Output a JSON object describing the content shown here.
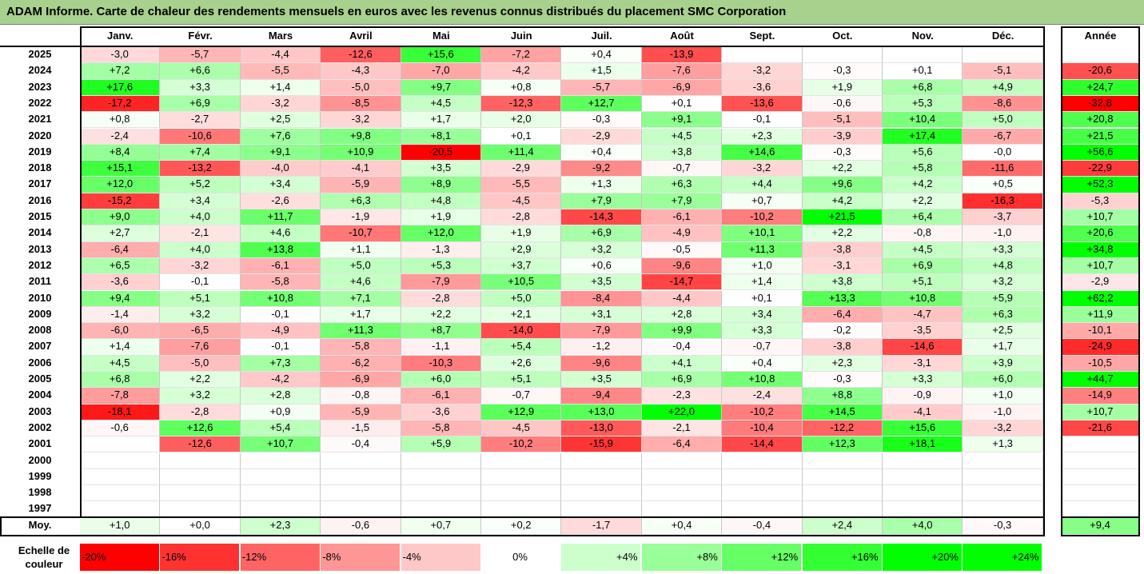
{
  "title": "ADAM Informe. Carte de chaleur des rendements mensuels en euros avec les revenus connus distribués du placement SMC Corporation",
  "chart_data": {
    "type": "heatmap",
    "title": "ADAM Informe. Carte de chaleur des rendements mensuels en euros avec les revenus connus distribués du placement SMC Corporation",
    "columns": [
      "Janv.",
      "Févr.",
      "Mars",
      "Avril",
      "Mai",
      "Juin",
      "Juil.",
      "Août",
      "Sept.",
      "Oct.",
      "Nov.",
      "Déc."
    ],
    "annual_header": "Année",
    "rows": [
      {
        "year": "2025",
        "months": [
          "-3,0",
          "-5,7",
          "-4,4",
          "-12,6",
          "+15,6",
          "-7,2",
          "+0,4",
          "-13,9",
          "",
          "",
          "",
          ""
        ],
        "annual": ""
      },
      {
        "year": "2024",
        "months": [
          "+7,2",
          "+6,6",
          "-5,5",
          "-4,3",
          "-7,0",
          "-4,2",
          "+1,5",
          "-7,6",
          "-3,2",
          "-0,3",
          "+0,1",
          "-5,1"
        ],
        "annual": "-20,6"
      },
      {
        "year": "2023",
        "months": [
          "+17,6",
          "+3,3",
          "+1,4",
          "-5,0",
          "+9,7",
          "+0,8",
          "-5,7",
          "-6,9",
          "-3,6",
          "+1,9",
          "+6,8",
          "+4,9"
        ],
        "annual": "+24,7"
      },
      {
        "year": "2022",
        "months": [
          "-17,2",
          "+6,9",
          "-3,2",
          "-8,5",
          "+4,5",
          "-12,3",
          "+12,7",
          "+0,1",
          "-13,6",
          "-0,6",
          "+5,3",
          "-8,6"
        ],
        "annual": "-32,8"
      },
      {
        "year": "2021",
        "months": [
          "+0,8",
          "-2,7",
          "+2,5",
          "-3,2",
          "+1,7",
          "+2,0",
          "-0,3",
          "+9,1",
          "-0,1",
          "-5,1",
          "+10,4",
          "+5,0"
        ],
        "annual": "+20,8"
      },
      {
        "year": "2020",
        "months": [
          "-2,4",
          "-10,6",
          "+7,6",
          "+9,8",
          "+8,1",
          "+0,1",
          "-2,9",
          "+4,5",
          "+2,3",
          "-3,9",
          "+17,4",
          "-6,7"
        ],
        "annual": "+21,5"
      },
      {
        "year": "2019",
        "months": [
          "+8,4",
          "+7,4",
          "+9,1",
          "+10,9",
          "-20,5",
          "+11,4",
          "+0,4",
          "+3,8",
          "+14,6",
          "-0,3",
          "+5,6",
          "-0,0"
        ],
        "annual": "+56,6"
      },
      {
        "year": "2018",
        "months": [
          "+15,1",
          "-13,2",
          "-4,0",
          "-4,1",
          "+3,5",
          "-2,9",
          "-9,2",
          "-0,7",
          "-3,2",
          "+2,2",
          "+5,8",
          "-11,6"
        ],
        "annual": "-22,9"
      },
      {
        "year": "2017",
        "months": [
          "+12,0",
          "+5,2",
          "+3,4",
          "-5,9",
          "+8,9",
          "-5,5",
          "+1,3",
          "+6,3",
          "+4,4",
          "+9,6",
          "+4,2",
          "+0,5"
        ],
        "annual": "+52,3"
      },
      {
        "year": "2016",
        "months": [
          "-15,2",
          "+3,4",
          "-2,6",
          "+6,3",
          "+4,8",
          "-4,5",
          "+7,9",
          "+7,9",
          "+0,7",
          "+4,2",
          "+2,2",
          "-16,3"
        ],
        "annual": "-5,3"
      },
      {
        "year": "2015",
        "months": [
          "+9,0",
          "+4,0",
          "+11,7",
          "-1,9",
          "+1,9",
          "-2,8",
          "-14,3",
          "-6,1",
          "-10,2",
          "+21,5",
          "+6,4",
          "-3,7"
        ],
        "annual": "+10,7"
      },
      {
        "year": "2014",
        "months": [
          "+2,7",
          "-2,1",
          "+4,6",
          "-10,7",
          "+12,0",
          "+1,9",
          "+6,9",
          "-4,9",
          "+10,1",
          "+2,2",
          "-0,8",
          "-1,0"
        ],
        "annual": "+20,6"
      },
      {
        "year": "2013",
        "months": [
          "-6,4",
          "+4,0",
          "+13,8",
          "+1,1",
          "-1,3",
          "+2,9",
          "+3,2",
          "-0,5",
          "+11,3",
          "-3,8",
          "+4,5",
          "+3,3"
        ],
        "annual": "+34,8"
      },
      {
        "year": "2012",
        "months": [
          "+6,5",
          "-3,2",
          "-6,1",
          "+5,0",
          "+5,3",
          "+3,7",
          "+0,6",
          "-9,6",
          "+1,0",
          "-3,1",
          "+6,9",
          "+4,8"
        ],
        "annual": "+10,7"
      },
      {
        "year": "2011",
        "months": [
          "-3,6",
          "-0,1",
          "-5,8",
          "+4,6",
          "-7,9",
          "+10,5",
          "+3,5",
          "-14,7",
          "+1,4",
          "+3,8",
          "+5,1",
          "+3,2"
        ],
        "annual": "-2,9"
      },
      {
        "year": "2010",
        "months": [
          "+9,4",
          "+5,1",
          "+10,8",
          "+7,1",
          "-2,8",
          "+5,0",
          "-8,4",
          "-4,4",
          "+0,1",
          "+13,3",
          "+10,8",
          "+5,9"
        ],
        "annual": "+62,2"
      },
      {
        "year": "2009",
        "months": [
          "-1,4",
          "+3,2",
          "-0,1",
          "+1,7",
          "+2,2",
          "+2,1",
          "+3,1",
          "+2,8",
          "+3,4",
          "-6,4",
          "-4,7",
          "+6,3"
        ],
        "annual": "+11,9"
      },
      {
        "year": "2008",
        "months": [
          "-6,0",
          "-6,5",
          "-4,9",
          "+11,3",
          "+8,7",
          "-14,0",
          "-7,9",
          "+9,9",
          "+3,3",
          "-0,2",
          "-3,5",
          "+2,5"
        ],
        "annual": "-10,1"
      },
      {
        "year": "2007",
        "months": [
          "+1,4",
          "-7,6",
          "-0,1",
          "-5,8",
          "-1,1",
          "+5,4",
          "-1,2",
          "-0,4",
          "-0,7",
          "-3,8",
          "-14,6",
          "+1,7"
        ],
        "annual": "-24,9"
      },
      {
        "year": "2006",
        "months": [
          "+4,5",
          "-5,0",
          "+7,3",
          "-6,2",
          "-10,3",
          "+2,6",
          "-9,6",
          "+4,1",
          "+0,4",
          "+2,3",
          "-3,1",
          "+3,9"
        ],
        "annual": "-10,5"
      },
      {
        "year": "2005",
        "months": [
          "+6,8",
          "+2,2",
          "-4,2",
          "-6,9",
          "+6,0",
          "+5,1",
          "+3,5",
          "+6,9",
          "+10,8",
          "-0,3",
          "+3,3",
          "+6,0"
        ],
        "annual": "+44,7"
      },
      {
        "year": "2004",
        "months": [
          "-7,8",
          "+3,2",
          "+2,8",
          "-0,8",
          "-6,1",
          "-0,7",
          "-9,4",
          "-2,3",
          "-2,4",
          "+8,8",
          "-0,9",
          "+1,0"
        ],
        "annual": "-14,9"
      },
      {
        "year": "2003",
        "months": [
          "-18,1",
          "-2,8",
          "+0,9",
          "-5,9",
          "-3,6",
          "+12,9",
          "+13,0",
          "+22,0",
          "-10,2",
          "+14,5",
          "-4,1",
          "-1,0"
        ],
        "annual": "+10,7"
      },
      {
        "year": "2002",
        "months": [
          "-0,6",
          "+12,6",
          "+5,4",
          "-1,5",
          "-5,8",
          "-4,5",
          "-13,0",
          "-2,1",
          "-10,4",
          "-12,2",
          "+15,6",
          "-3,2"
        ],
        "annual": "-21,6"
      },
      {
        "year": "2001",
        "months": [
          "",
          "-12,6",
          "+10,7",
          "-0,4",
          "+5,9",
          "-10,2",
          "-15,9",
          "-6,4",
          "-14,4",
          "+12,3",
          "+18,1",
          "+1,3"
        ],
        "annual": ""
      },
      {
        "year": "2000",
        "months": [
          "",
          "",
          "",
          "",
          "",
          "",
          "",
          "",
          "",
          "",
          "",
          ""
        ],
        "annual": ""
      },
      {
        "year": "1999",
        "months": [
          "",
          "",
          "",
          "",
          "",
          "",
          "",
          "",
          "",
          "",
          "",
          ""
        ],
        "annual": ""
      },
      {
        "year": "1998",
        "months": [
          "",
          "",
          "",
          "",
          "",
          "",
          "",
          "",
          "",
          "",
          "",
          ""
        ],
        "annual": ""
      },
      {
        "year": "1997",
        "months": [
          "",
          "",
          "",
          "",
          "",
          "",
          "",
          "",
          "",
          "",
          "",
          ""
        ],
        "annual": ""
      }
    ],
    "average": {
      "label": "Moy.",
      "months": [
        "+1,0",
        "+0,0",
        "+2,3",
        "-0,6",
        "+0,7",
        "+0,2",
        "-1,7",
        "+0,4",
        "-0,4",
        "+2,4",
        "+4,0",
        "-0,3"
      ],
      "annual": "+9,4"
    },
    "color_scale": {
      "label": "Echelle de couleur",
      "steps": [
        {
          "label": "-20%",
          "value": -20,
          "color": "#ff0000"
        },
        {
          "label": "-16%",
          "value": -16,
          "color": "#ff3232"
        },
        {
          "label": "-12%",
          "value": -12,
          "color": "#ff6464"
        },
        {
          "label": "-8%",
          "value": -8,
          "color": "#ff9696"
        },
        {
          "label": "-4%",
          "value": -4,
          "color": "#ffc8c8"
        },
        {
          "label": "0%",
          "value": 0,
          "color": "#ffffff"
        },
        {
          "label": "+4%",
          "value": 4,
          "color": "#ccffcc"
        },
        {
          "label": "+8%",
          "value": 8,
          "color": "#99ff99"
        },
        {
          "label": "+12%",
          "value": 12,
          "color": "#66ff66"
        },
        {
          "label": "+16%",
          "value": 16,
          "color": "#33ff33"
        },
        {
          "label": "+20%",
          "value": 20,
          "color": "#00ff00"
        },
        {
          "label": "+24%",
          "value": 24,
          "color": "#00ff00"
        }
      ]
    }
  }
}
